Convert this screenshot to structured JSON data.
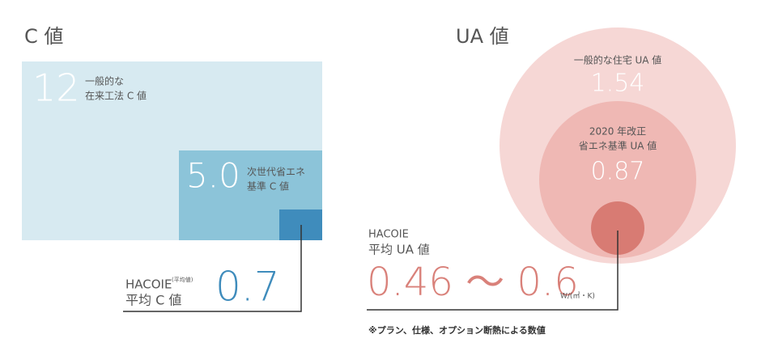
{
  "c_value": {
    "title": "C 値",
    "general": {
      "value": "12",
      "label_lines": [
        "一般的な",
        "在来工法 C 値"
      ]
    },
    "next_gen": {
      "value": "5.0",
      "label_lines": [
        "次世代省エネ",
        "基準 C 値"
      ]
    },
    "hacoie": {
      "brand": "HACOIE",
      "note": "(平均値)",
      "label": "平均 C 値",
      "value": "0.7"
    }
  },
  "ua_value": {
    "title": "UA 値",
    "general": {
      "label": "一般的な住宅 UA 値",
      "value": "1.54"
    },
    "standard_2020": {
      "label_lines": [
        "2020 年改正",
        "省エネ基準 UA 値"
      ],
      "value": "0.87"
    },
    "hacoie": {
      "brand": "HACOIE",
      "label": "平均 UA 値",
      "value": "0.46 〜 0.6",
      "unit": "W/(㎡・K)"
    },
    "footnote": "※プラン、仕様、オプション断熱による数値"
  }
}
